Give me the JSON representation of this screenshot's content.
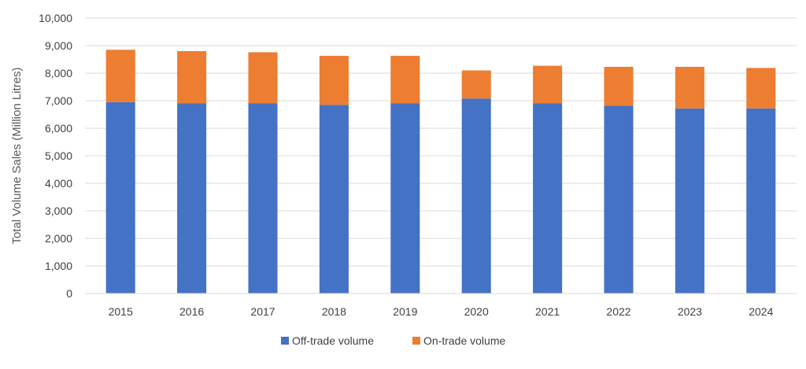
{
  "chart_data": {
    "type": "bar",
    "stacked": true,
    "title": "",
    "xlabel": "",
    "ylabel": "Total Volume Sales (Million Litres)",
    "ylim": [
      0,
      10000
    ],
    "yticks": [
      "0",
      "1,000",
      "2,000",
      "3,000",
      "4,000",
      "5,000",
      "6,000",
      "7,000",
      "8,000",
      "9,000",
      "10,000"
    ],
    "categories": [
      "2015",
      "2016",
      "2017",
      "2018",
      "2019",
      "2020",
      "2021",
      "2022",
      "2023",
      "2024"
    ],
    "series": [
      {
        "name": "Off-trade volume",
        "color": "#4472C4",
        "values": [
          6950,
          6900,
          6900,
          6850,
          6900,
          7080,
          6900,
          6820,
          6720,
          6720
        ]
      },
      {
        "name": "On-trade volume",
        "color": "#ED7D31",
        "values": [
          1900,
          1900,
          1860,
          1780,
          1730,
          1020,
          1370,
          1410,
          1510,
          1470
        ]
      }
    ],
    "grid": true,
    "legend_position": "bottom"
  }
}
